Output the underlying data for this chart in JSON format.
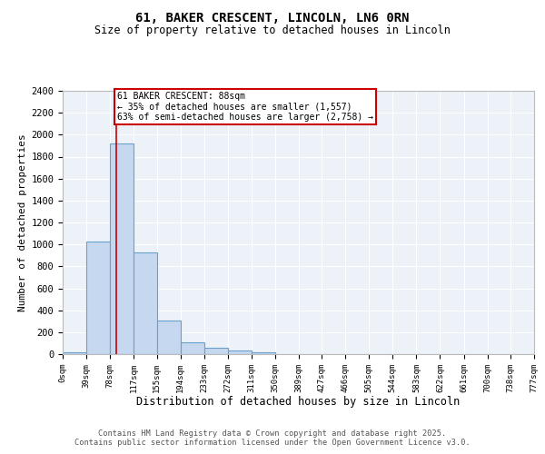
{
  "title_line1": "61, BAKER CRESCENT, LINCOLN, LN6 0RN",
  "title_line2": "Size of property relative to detached houses in Lincoln",
  "xlabel": "Distribution of detached houses by size in Lincoln",
  "ylabel": "Number of detached properties",
  "bin_edges": [
    0,
    39,
    78,
    117,
    155,
    194,
    233,
    272,
    311,
    350,
    389,
    427,
    466,
    505,
    544,
    583,
    622,
    661,
    700,
    738,
    777
  ],
  "bin_labels": [
    "0sqm",
    "39sqm",
    "78sqm",
    "117sqm",
    "155sqm",
    "194sqm",
    "233sqm",
    "272sqm",
    "311sqm",
    "350sqm",
    "389sqm",
    "427sqm",
    "466sqm",
    "505sqm",
    "544sqm",
    "583sqm",
    "622sqm",
    "661sqm",
    "700sqm",
    "738sqm",
    "777sqm"
  ],
  "bar_heights": [
    20,
    1030,
    1920,
    930,
    310,
    110,
    55,
    30,
    15,
    0,
    0,
    0,
    0,
    0,
    0,
    0,
    0,
    0,
    0,
    0
  ],
  "bar_color": "#c5d8ef",
  "bar_edge_color": "#6aa0cc",
  "property_size": 88,
  "property_line_color": "#cc0000",
  "annotation_text": "61 BAKER CRESCENT: 88sqm\n← 35% of detached houses are smaller (1,557)\n63% of semi-detached houses are larger (2,758) →",
  "annotation_box_color": "#ffffff",
  "annotation_box_edge": "#cc0000",
  "ylim": [
    0,
    2400
  ],
  "yticks": [
    0,
    200,
    400,
    600,
    800,
    1000,
    1200,
    1400,
    1600,
    1800,
    2000,
    2200,
    2400
  ],
  "background_color": "#edf2f9",
  "grid_color": "#ffffff",
  "footer_line1": "Contains HM Land Registry data © Crown copyright and database right 2025.",
  "footer_line2": "Contains public sector information licensed under the Open Government Licence v3.0."
}
